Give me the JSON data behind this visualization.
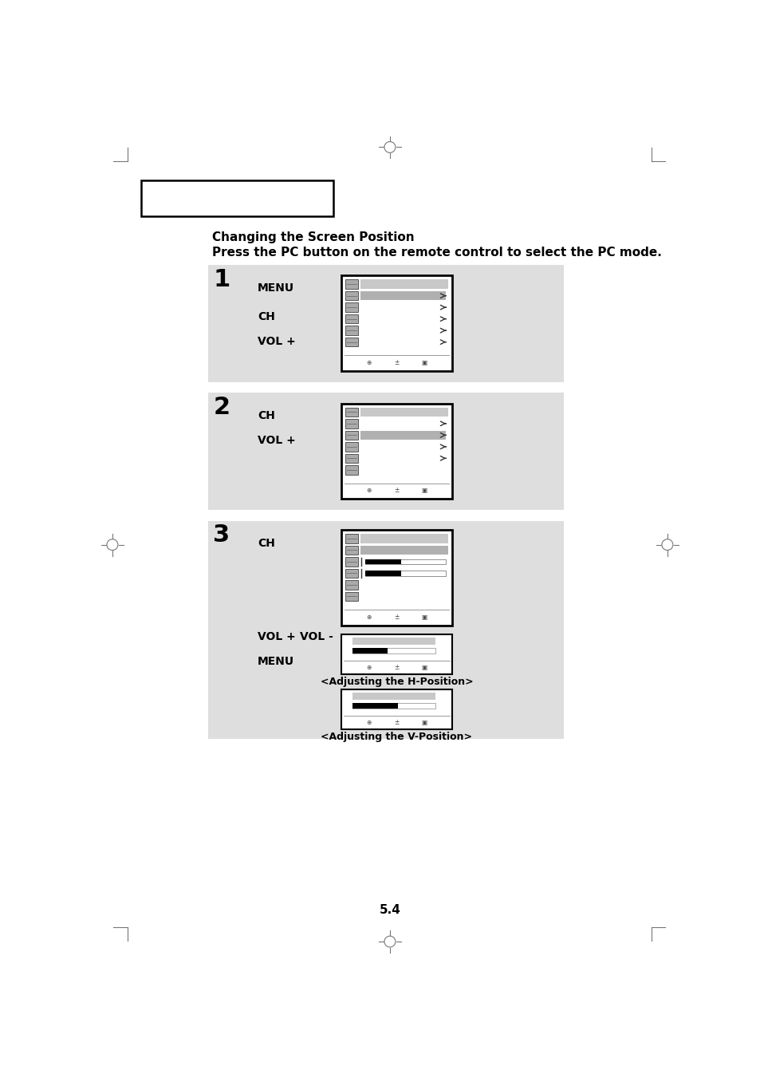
{
  "bg_color": "#ffffff",
  "title": "Changing the Screen Position",
  "subtitle": "Press the PC button on the remote control to select the PC mode.",
  "page_number": "5.4",
  "section_bg": "#dedede",
  "screen_border": "#000000",
  "screen_bg": "#ffffff",
  "title_bar_color": "#c0c0c0",
  "highlight_color": "#b0b0b0",
  "icon_color": "#aaaaaa",
  "bar_black": "#000000",
  "bar_light": "#d0d0d0"
}
